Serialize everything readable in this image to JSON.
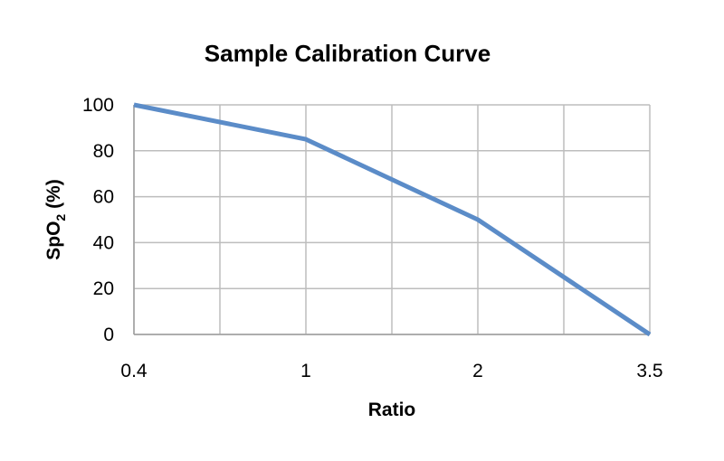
{
  "chart_data": {
    "type": "line",
    "title": "Sample Calibration Curve",
    "xlabel": "Ratio",
    "ylabel": "SpO2 (%)",
    "ylabel_parts": {
      "main": "SpO",
      "sub": "2",
      "rest": " (%)"
    },
    "x_tick_labels": [
      "0.4",
      "1",
      "2",
      "3.5"
    ],
    "y_ticks": [
      0,
      20,
      40,
      60,
      80,
      100
    ],
    "ylim": [
      0,
      100
    ],
    "grid": true,
    "series": [
      {
        "x": [
          "0.4",
          "1",
          "2",
          "3.5"
        ],
        "values": [
          100,
          85,
          50,
          0
        ],
        "color": "#5b8cc8"
      }
    ]
  }
}
